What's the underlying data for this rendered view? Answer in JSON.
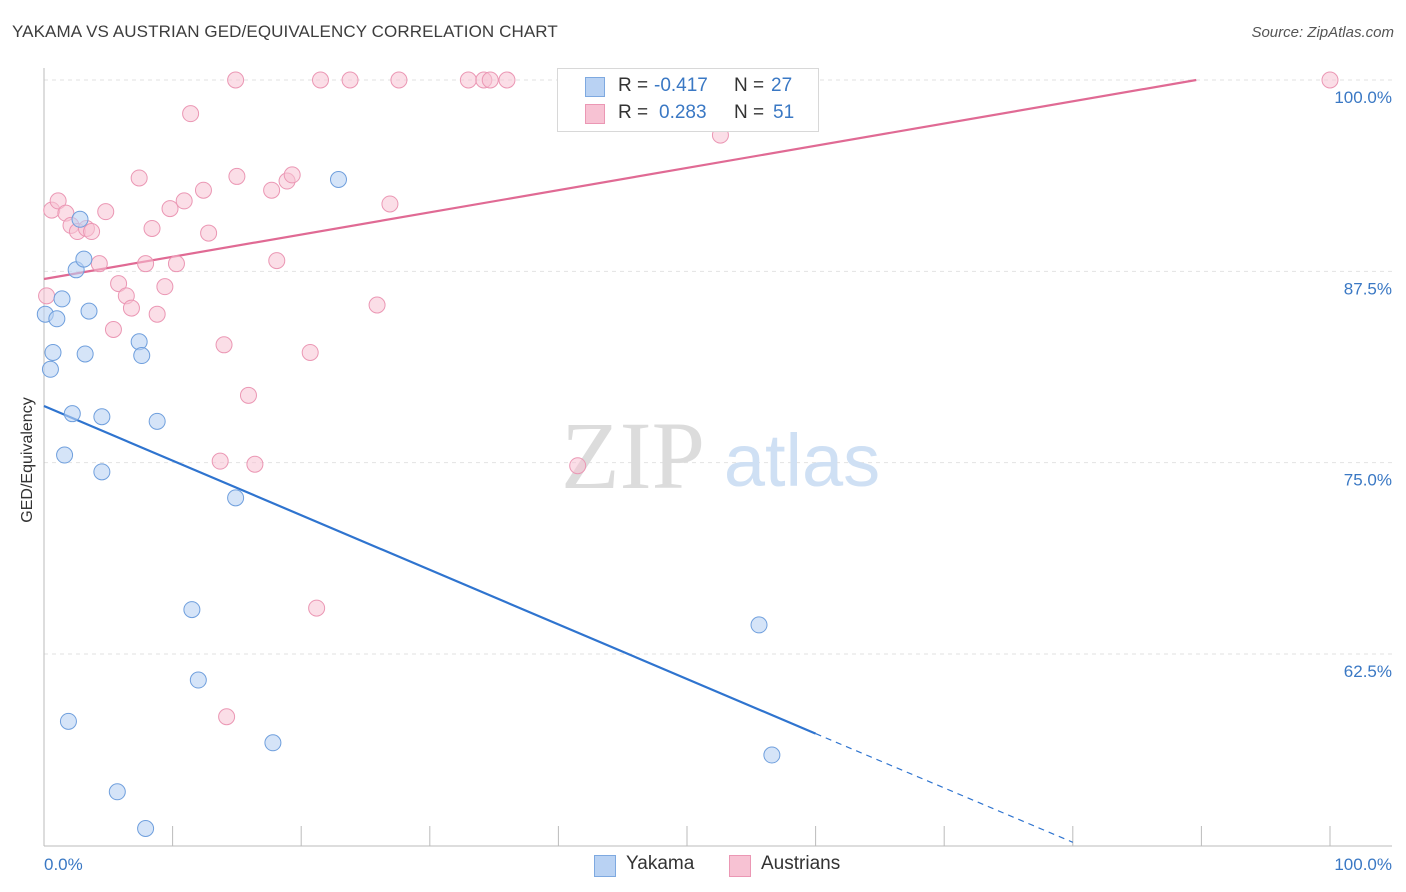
{
  "title": "YAKAMA VS AUSTRIAN GED/EQUIVALENCY CORRELATION CHART",
  "source": "Source: ZipAtlas.com",
  "watermark": {
    "zip": "ZIP",
    "atlas": "atlas"
  },
  "legend": {
    "rows": [
      {
        "r_label": "R =",
        "r_value": "-0.417",
        "n_label": "N =",
        "n_value": "27"
      },
      {
        "r_label": "R =",
        "r_value": "0.283",
        "n_label": "N =",
        "n_value": "51"
      }
    ]
  },
  "bottom_legend": {
    "yakama": "Yakama",
    "austrians": "Austrians"
  },
  "chart_data": {
    "type": "scatter",
    "title": "YAKAMA VS AUSTRIAN GED/EQUIVALENCY CORRELATION CHART",
    "xlabel": "",
    "ylabel": "GED/Equivalency",
    "xlim": [
      0,
      100
    ],
    "ylim": [
      50.0,
      101.2
    ],
    "x_tick_labels": [
      "0.0%",
      "100.0%"
    ],
    "y_ticks": [
      62.5,
      75.0,
      87.5,
      100.0
    ],
    "y_tick_labels": [
      "62.5%",
      "75.0%",
      "87.5%",
      "100.0%"
    ],
    "grid": "horizontal dashed",
    "colors": {
      "yakama_fill": "#b9d2f3",
      "yakama_line": "#2f74cf",
      "austrians_fill": "#f7c2d3",
      "austrians_line": "#e06a94",
      "tick_label": "#3a78c4"
    },
    "series": [
      {
        "name": "Yakama",
        "points": [
          [
            0.1,
            84.7
          ],
          [
            0.7,
            82.2
          ],
          [
            0.5,
            81.1
          ],
          [
            1.0,
            84.4
          ],
          [
            1.4,
            85.7
          ],
          [
            1.6,
            75.5
          ],
          [
            2.2,
            78.2
          ],
          [
            2.8,
            90.9
          ],
          [
            2.5,
            87.6
          ],
          [
            3.1,
            88.3
          ],
          [
            3.2,
            82.1
          ],
          [
            3.5,
            84.9
          ],
          [
            4.5,
            78.0
          ],
          [
            4.5,
            74.4
          ],
          [
            7.4,
            82.9
          ],
          [
            7.6,
            82.0
          ],
          [
            8.8,
            77.7
          ],
          [
            11.5,
            65.4
          ],
          [
            12.0,
            60.8
          ],
          [
            14.9,
            72.7
          ],
          [
            17.8,
            56.7
          ],
          [
            22.9,
            93.5
          ],
          [
            1.9,
            58.1
          ],
          [
            5.7,
            53.5
          ],
          [
            7.9,
            51.1
          ],
          [
            55.6,
            64.4
          ],
          [
            56.6,
            55.9
          ]
        ],
        "trend": {
          "x": [
            0,
            60
          ],
          "y": [
            78.7,
            57.3
          ],
          "dashed_to": {
            "x": 80,
            "y": 50.2
          }
        }
      },
      {
        "name": "Austrians",
        "points": [
          [
            0.2,
            85.9
          ],
          [
            0.6,
            91.5
          ],
          [
            1.1,
            92.1
          ],
          [
            1.7,
            91.3
          ],
          [
            2.1,
            90.5
          ],
          [
            2.6,
            90.1
          ],
          [
            3.3,
            90.3
          ],
          [
            3.7,
            90.1
          ],
          [
            4.3,
            88.0
          ],
          [
            4.8,
            91.4
          ],
          [
            5.4,
            83.7
          ],
          [
            5.8,
            86.7
          ],
          [
            6.4,
            85.9
          ],
          [
            6.8,
            85.1
          ],
          [
            7.4,
            93.6
          ],
          [
            7.9,
            88.0
          ],
          [
            8.4,
            90.3
          ],
          [
            8.8,
            84.7
          ],
          [
            9.4,
            86.5
          ],
          [
            9.8,
            91.6
          ],
          [
            10.3,
            88.0
          ],
          [
            10.9,
            92.1
          ],
          [
            11.4,
            97.8
          ],
          [
            12.4,
            92.8
          ],
          [
            12.8,
            90.0
          ],
          [
            13.7,
            75.1
          ],
          [
            14.0,
            82.7
          ],
          [
            14.2,
            58.4
          ],
          [
            15.0,
            93.7
          ],
          [
            15.9,
            79.4
          ],
          [
            16.4,
            74.9
          ],
          [
            17.7,
            92.8
          ],
          [
            18.1,
            88.2
          ],
          [
            18.9,
            93.4
          ],
          [
            19.3,
            93.8
          ],
          [
            20.7,
            82.2
          ],
          [
            21.2,
            65.5
          ],
          [
            14.9,
            100.0
          ],
          [
            21.5,
            100.0
          ],
          [
            23.8,
            100.0
          ],
          [
            25.9,
            85.3
          ],
          [
            26.9,
            91.9
          ],
          [
            27.6,
            100.0
          ],
          [
            33.0,
            100.0
          ],
          [
            34.2,
            100.0
          ],
          [
            34.7,
            100.0
          ],
          [
            36.0,
            100.0
          ],
          [
            41.5,
            74.8
          ],
          [
            47.4,
            100.0
          ],
          [
            52.6,
            96.4
          ],
          [
            100.0,
            100.0
          ]
        ],
        "trend": {
          "x": [
            0,
            89.6
          ],
          "y": [
            87.0,
            100.0
          ]
        }
      }
    ]
  }
}
